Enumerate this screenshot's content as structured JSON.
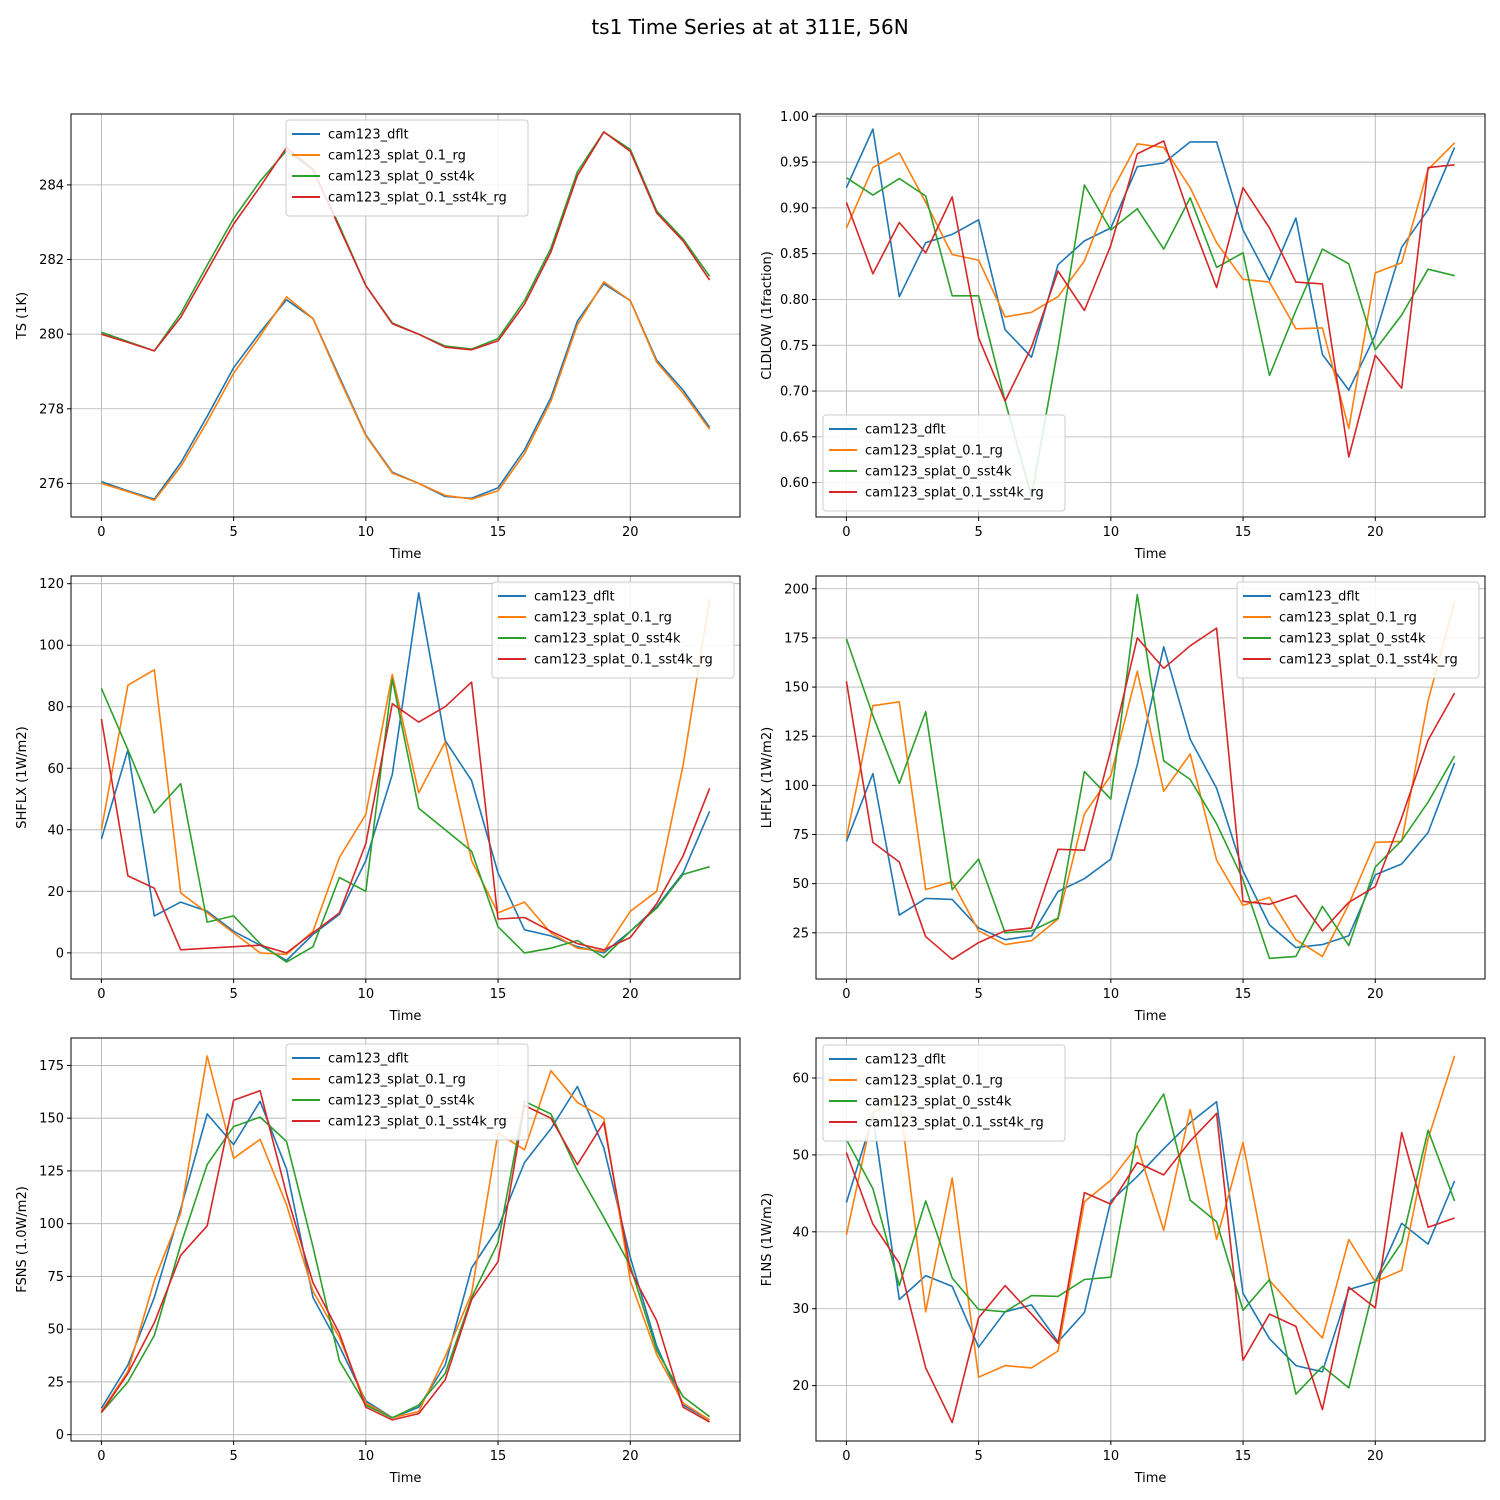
{
  "figure": {
    "title": "ts1 Time Series at at 311E, 56N"
  },
  "colors": {
    "cam123_dflt": "#1f77b4",
    "cam123_splat_0.1_rg": "#ff7f0e",
    "cam123_splat_0_sst4k": "#2ca02c",
    "cam123_splat_0.1_sst4k_rg": "#d62728"
  },
  "chart_data": [
    {
      "type": "line",
      "id": "ts",
      "xlabel": "Time",
      "ylabel": "TS (1K)",
      "xlim": [
        -1.15,
        24.15
      ],
      "ylim": [
        275.1,
        285.9
      ],
      "xticks": [
        0,
        5,
        10,
        15,
        20
      ],
      "yticks": [
        276,
        278,
        280,
        282,
        284
      ],
      "ytick_labels": [
        "276",
        "278",
        "280",
        "282",
        "284"
      ],
      "grid": true,
      "legend_position": "upper-center",
      "legend": [
        "cam123_dflt",
        "cam123_splat_0.1_rg",
        "cam123_splat_0_sst4k",
        "cam123_splat_0.1_sst4k_rg"
      ],
      "series": [
        {
          "name": "cam123_dflt",
          "values": [
            276.05,
            275.8,
            275.58,
            276.55,
            277.8,
            279.1,
            280.05,
            280.92,
            280.42,
            278.85,
            277.3,
            276.3,
            276.0,
            275.65,
            275.6,
            275.88,
            276.9,
            278.3,
            280.35,
            281.35,
            280.9,
            279.3,
            278.5,
            277.5
          ]
        },
        {
          "name": "cam123_splat_0.1_rg",
          "values": [
            276.0,
            275.78,
            275.55,
            276.45,
            277.65,
            278.95,
            279.95,
            281.0,
            280.42,
            278.8,
            277.28,
            276.28,
            276.0,
            275.68,
            275.58,
            275.8,
            276.8,
            278.2,
            280.25,
            281.4,
            280.9,
            279.25,
            278.42,
            277.45
          ]
        },
        {
          "name": "cam123_splat_0_sst4k",
          "values": [
            280.05,
            279.8,
            279.55,
            280.55,
            281.85,
            283.1,
            284.1,
            284.92,
            284.4,
            282.9,
            281.3,
            280.3,
            280.0,
            279.68,
            279.6,
            279.88,
            280.9,
            282.3,
            284.35,
            285.42,
            284.95,
            283.3,
            282.55,
            281.55
          ]
        },
        {
          "name": "cam123_splat_0.1_sst4k_rg",
          "values": [
            280.0,
            279.78,
            279.55,
            280.45,
            281.7,
            282.95,
            283.95,
            285.0,
            284.42,
            282.85,
            281.3,
            280.28,
            280.0,
            279.65,
            279.58,
            279.82,
            280.8,
            282.2,
            284.25,
            285.42,
            284.9,
            283.25,
            282.5,
            281.45
          ]
        }
      ]
    },
    {
      "type": "line",
      "id": "cldlow",
      "xlabel": "Time",
      "ylabel": "CLDLOW (1fraction)",
      "xlim": [
        -1.15,
        24.15
      ],
      "ylim": [
        0.5625,
        1.0025
      ],
      "xticks": [
        0,
        5,
        10,
        15,
        20
      ],
      "yticks": [
        0.6,
        0.65,
        0.7,
        0.75,
        0.8,
        0.85,
        0.9,
        0.95,
        1.0
      ],
      "ytick_labels": [
        "0.60",
        "0.65",
        "0.70",
        "0.75",
        "0.80",
        "0.85",
        "0.90",
        "0.95",
        "1.00"
      ],
      "grid": true,
      "legend_position": "lower-left",
      "legend": [
        "cam123_dflt",
        "cam123_splat_0.1_rg",
        "cam123_splat_0_sst4k",
        "cam123_splat_0.1_sst4k_rg"
      ],
      "series": [
        {
          "name": "cam123_dflt",
          "values": [
            0.922,
            0.986,
            0.803,
            0.862,
            0.871,
            0.887,
            0.767,
            0.737,
            0.838,
            0.864,
            0.878,
            0.945,
            0.949,
            0.972,
            0.972,
            0.876,
            0.821,
            0.889,
            0.74,
            0.701,
            0.761,
            0.857,
            0.898,
            0.966
          ]
        },
        {
          "name": "cam123_splat_0.1_rg",
          "values": [
            0.878,
            0.944,
            0.96,
            0.906,
            0.849,
            0.843,
            0.781,
            0.786,
            0.803,
            0.842,
            0.916,
            0.97,
            0.966,
            0.922,
            0.862,
            0.822,
            0.819,
            0.768,
            0.769,
            0.659,
            0.829,
            0.84,
            0.942,
            0.971
          ]
        },
        {
          "name": "cam123_splat_0_sst4k",
          "values": [
            0.933,
            0.914,
            0.932,
            0.913,
            0.804,
            0.804,
            0.689,
            0.585,
            0.747,
            0.925,
            0.876,
            0.899,
            0.855,
            0.911,
            0.835,
            0.851,
            0.717,
            0.788,
            0.855,
            0.839,
            0.745,
            0.783,
            0.833,
            0.826
          ]
        },
        {
          "name": "cam123_splat_0.1_sst4k_rg",
          "values": [
            0.906,
            0.828,
            0.884,
            0.851,
            0.912,
            0.758,
            0.689,
            0.748,
            0.831,
            0.788,
            0.859,
            0.959,
            0.973,
            0.889,
            0.813,
            0.922,
            0.878,
            0.819,
            0.817,
            0.628,
            0.739,
            0.703,
            0.944,
            0.947
          ]
        }
      ]
    },
    {
      "type": "line",
      "id": "shflx",
      "xlabel": "Time",
      "ylabel": "SHFLX (1W/m2)",
      "xlim": [
        -1.15,
        24.15
      ],
      "ylim": [
        -8.5,
        122.5
      ],
      "xticks": [
        0,
        5,
        10,
        15,
        20
      ],
      "yticks": [
        0,
        20,
        40,
        60,
        80,
        100,
        120
      ],
      "ytick_labels": [
        "0",
        "20",
        "40",
        "60",
        "80",
        "100",
        "120"
      ],
      "grid": true,
      "legend_position": "upper-right",
      "legend": [
        "cam123_dflt",
        "cam123_splat_0.1_rg",
        "cam123_splat_0_sst4k",
        "cam123_splat_0.1_sst4k_rg"
      ],
      "series": [
        {
          "name": "cam123_dflt",
          "values": [
            37,
            66,
            12,
            16.5,
            13.5,
            7,
            2.5,
            -2.5,
            6,
            12.5,
            30,
            58,
            117,
            69,
            56,
            26,
            7.5,
            5.5,
            2,
            0,
            7,
            15,
            26,
            46
          ]
        },
        {
          "name": "cam123_splat_0.1_rg",
          "values": [
            40,
            87,
            92,
            19.5,
            13,
            6.5,
            0,
            -0.5,
            7,
            31,
            45,
            90.5,
            52,
            68.5,
            30,
            13,
            16.5,
            6.5,
            1.5,
            0.5,
            13.5,
            20,
            61,
            115
          ]
        },
        {
          "name": "cam123_splat_0_sst4k",
          "values": [
            86,
            66,
            45.5,
            55,
            10,
            12,
            3,
            -3,
            2,
            24.5,
            20,
            89,
            47,
            40,
            33,
            8.5,
            0,
            1.5,
            4,
            -1.5,
            7,
            14.5,
            25.5,
            28
          ]
        },
        {
          "name": "cam123_splat_0.1_sst4k_rg",
          "values": [
            76,
            25,
            21,
            1,
            1.5,
            2,
            2.5,
            0,
            6.5,
            13,
            35.5,
            81,
            75,
            80,
            88,
            11,
            11.5,
            7,
            3,
            1,
            5,
            16,
            31.5,
            53.5
          ]
        }
      ]
    },
    {
      "type": "line",
      "id": "lhflx",
      "xlabel": "Time",
      "ylabel": "LHFLX (1W/m2)",
      "xlim": [
        -1.15,
        24.15
      ],
      "ylim": [
        1.5,
        206.5
      ],
      "xticks": [
        0,
        5,
        10,
        15,
        20
      ],
      "yticks": [
        25,
        50,
        75,
        100,
        125,
        150,
        175,
        200
      ],
      "ytick_labels": [
        "25",
        "50",
        "75",
        "100",
        "125",
        "150",
        "175",
        "200"
      ],
      "grid": true,
      "legend_position": "upper-right",
      "legend": [
        "cam123_dflt",
        "cam123_splat_0.1_rg",
        "cam123_splat_0_sst4k",
        "cam123_splat_0.1_sst4k_rg"
      ],
      "series": [
        {
          "name": "cam123_dflt",
          "values": [
            71.5,
            106,
            34,
            42.5,
            42,
            27.5,
            21.5,
            23.5,
            46,
            52.5,
            62.5,
            110.5,
            170.5,
            123.5,
            98.5,
            56.5,
            29,
            17.5,
            19,
            23.5,
            54.5,
            60,
            76,
            111.5
          ]
        },
        {
          "name": "cam123_splat_0.1_rg",
          "values": [
            73,
            140.5,
            142.5,
            47,
            51,
            26,
            19,
            21,
            32,
            85.5,
            105,
            158,
            97,
            116,
            62,
            39,
            43,
            21.5,
            13,
            39.5,
            71,
            71.5,
            143,
            193.5
          ]
        },
        {
          "name": "cam123_splat_0_sst4k",
          "values": [
            174.5,
            135.5,
            101,
            137.5,
            47,
            62.5,
            25,
            26,
            32.5,
            107,
            93,
            197,
            112.5,
            103,
            80.5,
            52,
            12,
            13,
            38.5,
            18.5,
            58.5,
            72,
            91.5,
            115
          ]
        },
        {
          "name": "cam123_splat_0.1_sst4k_rg",
          "values": [
            153,
            71,
            61,
            23,
            11.5,
            20,
            26,
            27.5,
            67.5,
            67,
            118,
            175,
            159.5,
            171,
            180,
            41,
            39.5,
            44,
            26,
            40.5,
            48.5,
            83.5,
            123,
            147
          ]
        }
      ]
    },
    {
      "type": "line",
      "id": "fsns",
      "xlabel": "Time",
      "ylabel": "FSNS (1.0W/m2)",
      "xlim": [
        -1.15,
        24.15
      ],
      "ylim": [
        -3,
        188
      ],
      "xticks": [
        0,
        5,
        10,
        15,
        20
      ],
      "yticks": [
        0,
        25,
        50,
        75,
        100,
        125,
        150,
        175
      ],
      "ytick_labels": [
        "0",
        "25",
        "50",
        "75",
        "100",
        "125",
        "150",
        "175"
      ],
      "grid": true,
      "legend_position": "upper-center",
      "legend": [
        "cam123_dflt",
        "cam123_splat_0.1_rg",
        "cam123_splat_0_sst4k",
        "cam123_splat_0.1_sst4k_rg"
      ],
      "series": [
        {
          "name": "cam123_dflt",
          "values": [
            12.5,
            33,
            65,
            107,
            152,
            137.5,
            158,
            126,
            65,
            42,
            16,
            8,
            13,
            33,
            79,
            98,
            129,
            145,
            165,
            136,
            84,
            42,
            14,
            7
          ]
        },
        {
          "name": "cam123_splat_0.1_rg",
          "values": [
            11,
            30,
            73,
            105,
            179.5,
            131,
            140,
            109,
            68,
            46,
            15,
            8,
            11,
            37,
            67,
            143,
            135,
            172.5,
            157.5,
            150,
            73,
            38,
            15,
            7
          ]
        },
        {
          "name": "cam123_splat_0_sst4k",
          "values": [
            10.5,
            25,
            47,
            90,
            128,
            146,
            150.5,
            139,
            89,
            35,
            14,
            8,
            14,
            29,
            65,
            91,
            158,
            152,
            125,
            103,
            80,
            40,
            18,
            8.5
          ]
        },
        {
          "name": "cam123_splat_0.1_sst4k_rg",
          "values": [
            10.5,
            29,
            53,
            85,
            99,
            158.5,
            163,
            114,
            72,
            48,
            13,
            7,
            10,
            26,
            64,
            82,
            156,
            150,
            128,
            148,
            78,
            54,
            13,
            6
          ]
        }
      ]
    },
    {
      "type": "line",
      "id": "flns",
      "xlabel": "Time",
      "ylabel": "FLNS (1W/m2)",
      "xlim": [
        -1.15,
        24.15
      ],
      "ylim": [
        12.8,
        65.2
      ],
      "xticks": [
        0,
        5,
        10,
        15,
        20
      ],
      "yticks": [
        20,
        30,
        40,
        50,
        60
      ],
      "ytick_labels": [
        "20",
        "30",
        "40",
        "50",
        "60"
      ],
      "grid": true,
      "legend_position": "upper-left",
      "legend": [
        "cam123_dflt",
        "cam123_splat_0.1_rg",
        "cam123_splat_0_sst4k",
        "cam123_splat_0.1_sst4k_rg"
      ],
      "series": [
        {
          "name": "cam123_dflt",
          "values": [
            43.8,
            55,
            31.2,
            34.3,
            32.9,
            25,
            29.6,
            30.5,
            25.7,
            29.5,
            44,
            47.2,
            50.8,
            54.2,
            56.9,
            32,
            26.1,
            22.6,
            21.8,
            32.5,
            33.5,
            41.1,
            38.4,
            46.6
          ]
        },
        {
          "name": "cam123_splat_0.1_rg",
          "values": [
            39.6,
            55.5,
            57.5,
            29.6,
            47,
            21.1,
            22.6,
            22.3,
            24.5,
            43.9,
            46.7,
            51.2,
            40.2,
            55.9,
            39,
            51.6,
            33.7,
            29.8,
            26.2,
            39,
            33.5,
            35,
            52.1,
            62.9
          ]
        },
        {
          "name": "cam123_splat_0_sst4k",
          "values": [
            52,
            45.6,
            33,
            44,
            34,
            29.9,
            29.6,
            31.7,
            31.6,
            33.8,
            34.1,
            52.8,
            57.9,
            44.1,
            41.3,
            29.8,
            33.8,
            18.9,
            22.5,
            19.7,
            33.5,
            38.6,
            53.2,
            44
          ]
        },
        {
          "name": "cam123_splat_0.1_sst4k_rg",
          "values": [
            50.3,
            41,
            35.9,
            22.3,
            15.2,
            28.8,
            33,
            29.3,
            25.5,
            45.1,
            43.6,
            49,
            47.4,
            51.8,
            55.4,
            23.3,
            29.3,
            27.7,
            16.9,
            32.8,
            30.1,
            52.9,
            40.6,
            41.8
          ]
        }
      ]
    }
  ]
}
